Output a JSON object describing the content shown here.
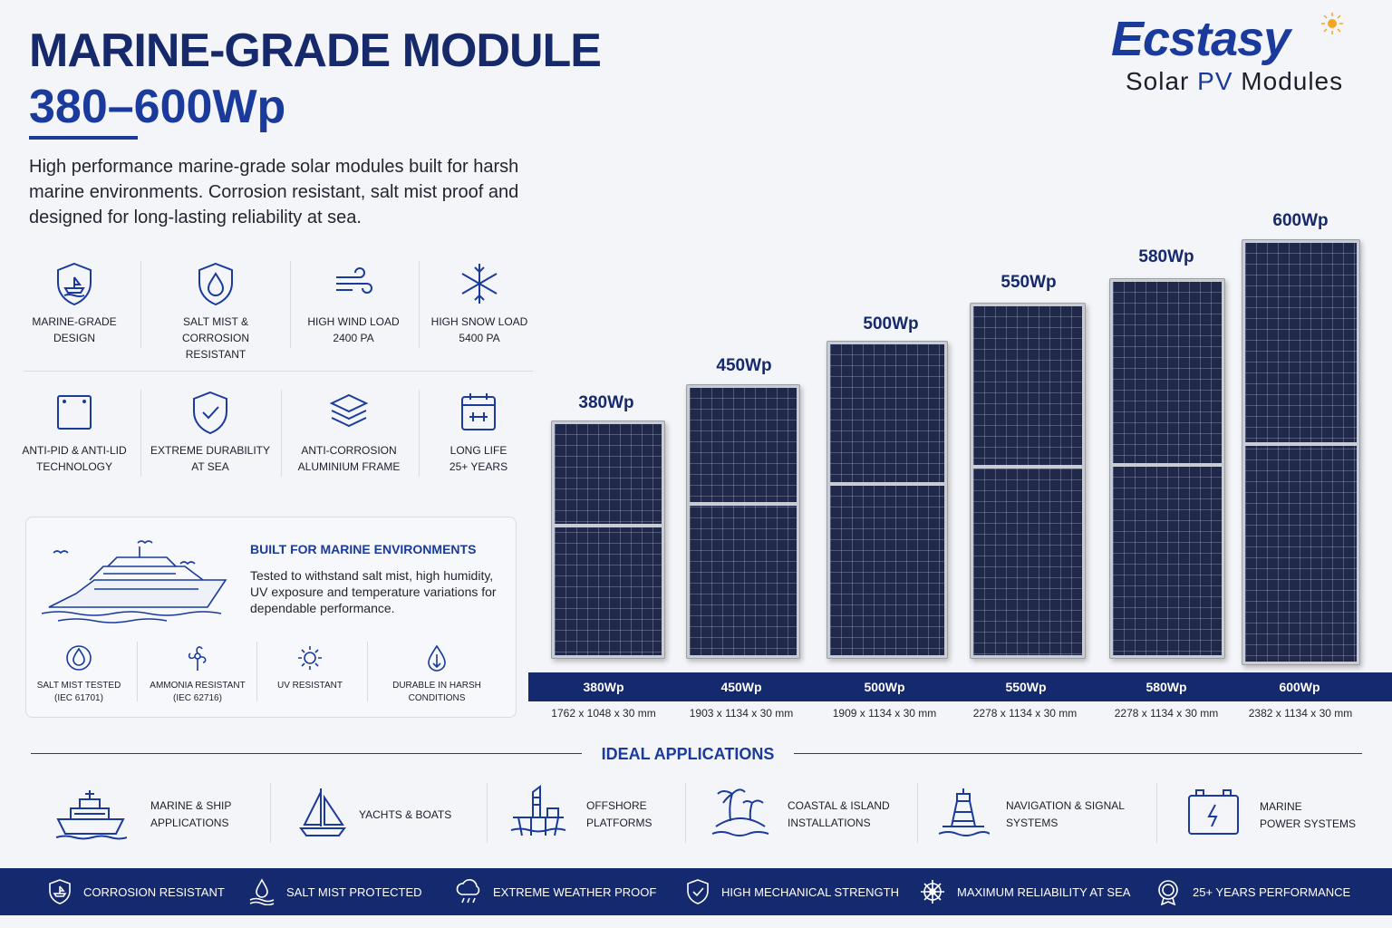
{
  "header": {
    "title_line1": "MARINE-GRADE MODULE",
    "title_line2": "380–600Wp",
    "description": "High performance marine-grade solar modules built for harsh marine environments. Corrosion resistant, salt mist proof and designed for long-lasting reliability at sea."
  },
  "logo": {
    "brand": "Ecstasy",
    "sub_pre": "Solar ",
    "sub_pv": "PV",
    "sub_post": " Modules"
  },
  "features_row1": [
    {
      "icon": "shield-boat-icon",
      "label": "MARINE-GRADE DESIGN"
    },
    {
      "icon": "shield-drop-icon",
      "label": "SALT MIST & CORROSION RESISTANT"
    },
    {
      "icon": "wind-icon",
      "line1": "HIGH WIND LOAD",
      "line2": "2400 Pa"
    },
    {
      "icon": "snowflake-icon",
      "line1": "HIGH SNOW LOAD",
      "line2": "5400 Pa"
    }
  ],
  "features_row2": [
    {
      "icon": "module-icon",
      "label": "ANTI-PID & ANTI-LID TECHNOLOGY"
    },
    {
      "icon": "shield-check-icon",
      "label": "EXTREME DURABILITY AT SEA"
    },
    {
      "icon": "layers-icon",
      "label": "ANTI-CORROSION ALUMINIUM FRAME"
    },
    {
      "icon": "calendar-icon",
      "line1": "LONG LIFE",
      "line2": "25+ YEARS"
    }
  ],
  "marine": {
    "title": "BUILT FOR MARINE ENVIRONMENTS",
    "text": "Tested to withstand salt mist, high humidity, UV exposure and temperature variations for dependable performance.",
    "features": [
      {
        "icon": "drop-icon",
        "line1": "SALT MIST TESTED",
        "line2": "(IEC 61701)"
      },
      {
        "icon": "fan-icon",
        "line1": "AMMONIA RESISTANT",
        "line2": "(IEC 62716)"
      },
      {
        "icon": "sun-icon",
        "line1": "UV RESISTANT",
        "line2": ""
      },
      {
        "icon": "drop-outline-icon",
        "line1": "DURABLE IN HARSH",
        "line2": "CONDITIONS"
      }
    ]
  },
  "panels": [
    {
      "label": "380Wp",
      "dims": "1762 x 1048 x 30 mm"
    },
    {
      "label": "450Wp",
      "dims": "1903 x 1134 x 30 mm"
    },
    {
      "label": "500Wp",
      "dims": "1909 x 1134 x 30 mm"
    },
    {
      "label": "550Wp",
      "dims": "2278 x 1134 x 30 mm"
    },
    {
      "label": "580Wp",
      "dims": "2278 x 1134 x 30 mm"
    },
    {
      "label": "600Wp",
      "dims": "2382 x 1134 x 30 mm"
    }
  ],
  "applications": {
    "title": "IDEAL APPLICATIONS",
    "items": [
      {
        "icon": "ship-icon",
        "line1": "MARINE & SHIP",
        "line2": "APPLICATIONS"
      },
      {
        "icon": "sailboat-icon",
        "line1": "YACHTS & BOATS",
        "line2": ""
      },
      {
        "icon": "oil-platform-icon",
        "line1": "OFFSHORE",
        "line2": "PLATFORMS"
      },
      {
        "icon": "palm-island-icon",
        "line1": "COASTAL & ISLAND",
        "line2": "INSTALLATIONS"
      },
      {
        "icon": "buoy-icon",
        "line1": "NAVIGATION & SIGNAL",
        "line2": "SYSTEMS"
      },
      {
        "icon": "battery-icon",
        "line1": "MARINE",
        "line2": "POWER SYSTEMS"
      }
    ]
  },
  "bottom_bar": [
    {
      "icon": "shield-boat-icon",
      "label": "CORROSION RESISTANT"
    },
    {
      "icon": "drop-waves-icon",
      "label": "SALT MIST PROTECTED"
    },
    {
      "icon": "cloud-rain-icon",
      "label": "EXTREME WEATHER PROOF"
    },
    {
      "icon": "shield-check-icon",
      "label": "HIGH MECHANICAL STRENGTH"
    },
    {
      "icon": "ship-wheel-icon",
      "label": "MAXIMUM RELIABILITY AT SEA"
    },
    {
      "icon": "badge-icon",
      "label": "25+ YEARS PERFORMANCE"
    }
  ],
  "colors": {
    "navy": "#15296e",
    "accent_blue": "#1a3a9c",
    "background": "#f4f5f8"
  }
}
